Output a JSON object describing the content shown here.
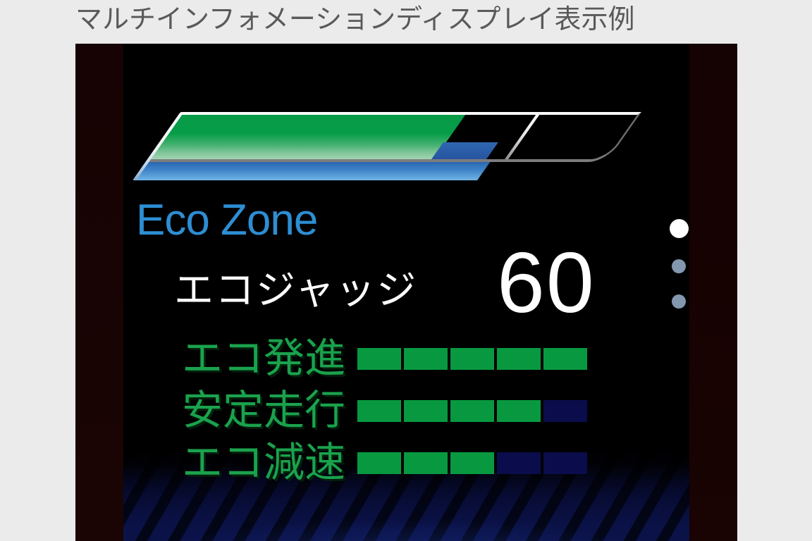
{
  "page": {
    "title": "マルチインフォメーションディスプレイ表示例"
  },
  "display": {
    "eco_zone_label": "Eco Zone",
    "eco_judge_label": "エコジャッジ",
    "eco_judge_score": "60",
    "gauge": {
      "green_percent": 62,
      "blue_left_percent": 61.5,
      "blue_width_percent": 12,
      "divider_percent": 77.5,
      "lower_bar_percent": 74.5
    },
    "rows": [
      {
        "label": "エコ発進",
        "filled": 5,
        "total": 5
      },
      {
        "label": "安定走行",
        "filled": 4,
        "total": 5
      },
      {
        "label": "エコ減速",
        "filled": 3,
        "total": 5
      }
    ],
    "page_dots": [
      {
        "state": "active"
      },
      {
        "state": "inactive"
      },
      {
        "state": "inactive"
      }
    ],
    "colors": {
      "eco_zone_blue": "#2d8ed3",
      "score_white": "#ffffff",
      "segment_green": "#089940",
      "segment_empty_navy": "#0a0c4c",
      "label_green": "#1aa24d",
      "gauge_green_top": "#069c47",
      "gauge_green_bottom": "#a3d4b2",
      "gauge_blue_segment": "#2a5fa9",
      "lower_bar_blue_top": "#2b66b0",
      "lower_bar_blue_bottom": "#72b4e6",
      "dot_active": "#ffffff",
      "dot_inactive": "#8397ae",
      "trim_maroon": "#180303",
      "floor_navy": "#0b1248"
    }
  }
}
